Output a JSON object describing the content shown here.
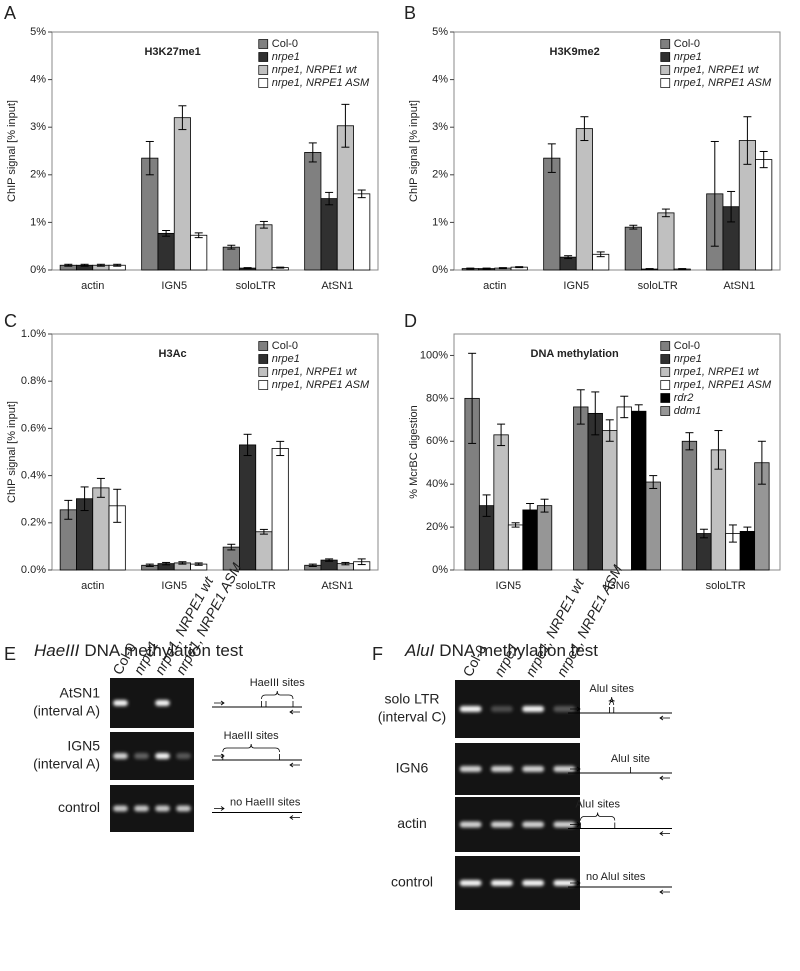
{
  "chart_data": [
    {
      "panel": "A",
      "type": "bar",
      "title": "H3K27me1",
      "ylabel": "ChIP signal [% input]",
      "categories": [
        "actin",
        "IGN5",
        "soloLTR",
        "AtSN1"
      ],
      "ylim": [
        0,
        5
      ],
      "yticks": [
        {
          "value": 0,
          "label": "0%"
        },
        {
          "value": 1,
          "label": "1%"
        },
        {
          "value": 2,
          "label": "2%"
        },
        {
          "value": 3,
          "label": "3%"
        },
        {
          "value": 4,
          "label": "4%"
        },
        {
          "value": 5,
          "label": "5%"
        }
      ],
      "legend": "upper right",
      "series": [
        {
          "name": "Col-0",
          "color": "#808080",
          "italic": false,
          "values": [
            0.1,
            2.35,
            0.48,
            2.47
          ],
          "errors": [
            0.02,
            0.35,
            0.04,
            0.2
          ]
        },
        {
          "name": "nrpe1",
          "color": "#303030",
          "italic": true,
          "values": [
            0.1,
            0.77,
            0.04,
            1.5
          ],
          "errors": [
            0.02,
            0.06,
            0.01,
            0.13
          ]
        },
        {
          "name": "nrpe1, NRPE1 wt",
          "color": "#c0c0c0",
          "italic": true,
          "values": [
            0.1,
            3.2,
            0.95,
            3.03
          ],
          "errors": [
            0.02,
            0.25,
            0.07,
            0.45
          ]
        },
        {
          "name": "nrpe1, NRPE1 ASM",
          "color": "#ffffff",
          "italic": true,
          "values": [
            0.1,
            0.73,
            0.05,
            1.6
          ],
          "errors": [
            0.02,
            0.05,
            0.01,
            0.08
          ]
        }
      ]
    },
    {
      "panel": "B",
      "type": "bar",
      "title": "H3K9me2",
      "ylabel": "ChIP signal [% input]",
      "categories": [
        "actin",
        "IGN5",
        "soloLTR",
        "AtSN1"
      ],
      "ylim": [
        0,
        5
      ],
      "yticks": [
        {
          "value": 0,
          "label": "0%"
        },
        {
          "value": 1,
          "label": "1%"
        },
        {
          "value": 2,
          "label": "2%"
        },
        {
          "value": 3,
          "label": "3%"
        },
        {
          "value": 4,
          "label": "4%"
        },
        {
          "value": 5,
          "label": "5%"
        }
      ],
      "legend": "upper right",
      "series": [
        {
          "name": "Col-0",
          "color": "#808080",
          "italic": false,
          "values": [
            0.03,
            2.35,
            0.9,
            1.6
          ],
          "errors": [
            0.01,
            0.3,
            0.04,
            1.1
          ]
        },
        {
          "name": "nrpe1",
          "color": "#303030",
          "italic": true,
          "values": [
            0.03,
            0.27,
            0.02,
            1.33
          ],
          "errors": [
            0.01,
            0.03,
            0.01,
            0.32
          ]
        },
        {
          "name": "nrpe1, NRPE1 wt",
          "color": "#c0c0c0",
          "italic": true,
          "values": [
            0.04,
            2.97,
            1.2,
            2.72
          ],
          "errors": [
            0.01,
            0.25,
            0.08,
            0.5
          ]
        },
        {
          "name": "nrpe1, NRPE1 ASM",
          "color": "#ffffff",
          "italic": true,
          "values": [
            0.06,
            0.33,
            0.02,
            2.32
          ],
          "errors": [
            0.01,
            0.05,
            0.01,
            0.17
          ]
        }
      ]
    },
    {
      "panel": "C",
      "type": "bar",
      "title": "H3Ac",
      "ylabel": "ChIP signal [% input]",
      "categories": [
        "actin",
        "IGN5",
        "soloLTR",
        "AtSN1"
      ],
      "ylim": [
        0,
        1
      ],
      "yticks": [
        {
          "value": 0,
          "label": "0.0%"
        },
        {
          "value": 0.2,
          "label": "0.2%"
        },
        {
          "value": 0.4,
          "label": "0.4%"
        },
        {
          "value": 0.6,
          "label": "0.6%"
        },
        {
          "value": 0.8,
          "label": "0.8%"
        },
        {
          "value": 1,
          "label": "1.0%"
        }
      ],
      "legend": "upper right",
      "series": [
        {
          "name": "Col-0",
          "color": "#808080",
          "italic": false,
          "values": [
            0.255,
            0.02,
            0.097,
            0.02
          ],
          "errors": [
            0.04,
            0.005,
            0.012,
            0.005
          ]
        },
        {
          "name": "nrpe1",
          "color": "#303030",
          "italic": true,
          "values": [
            0.302,
            0.027,
            0.53,
            0.042
          ],
          "errors": [
            0.05,
            0.005,
            0.045,
            0.005
          ]
        },
        {
          "name": "nrpe1, NRPE1 wt",
          "color": "#c0c0c0",
          "italic": true,
          "values": [
            0.348,
            0.03,
            0.162,
            0.027
          ],
          "errors": [
            0.04,
            0.005,
            0.01,
            0.005
          ]
        },
        {
          "name": "nrpe1, NRPE1 ASM",
          "color": "#ffffff",
          "italic": true,
          "values": [
            0.272,
            0.025,
            0.515,
            0.035
          ],
          "errors": [
            0.07,
            0.005,
            0.03,
            0.012
          ]
        }
      ]
    },
    {
      "panel": "D",
      "type": "bar",
      "title": "DNA methylation",
      "ylabel": "% McrBC digestion",
      "categories": [
        "IGN5",
        "IGN6",
        "soloLTR"
      ],
      "ylim": [
        0,
        110
      ],
      "yticks": [
        {
          "value": 0,
          "label": "0%"
        },
        {
          "value": 20,
          "label": "20%"
        },
        {
          "value": 40,
          "label": "40%"
        },
        {
          "value": 60,
          "label": "60%"
        },
        {
          "value": 80,
          "label": "80%"
        },
        {
          "value": 100,
          "label": "100%"
        }
      ],
      "legend": "upper right",
      "series": [
        {
          "name": "Col-0",
          "color": "#808080",
          "italic": false,
          "values": [
            80,
            76,
            60
          ],
          "errors": [
            21,
            8,
            4
          ]
        },
        {
          "name": "nrpe1",
          "color": "#303030",
          "italic": true,
          "values": [
            30,
            73,
            17
          ],
          "errors": [
            5,
            10,
            2
          ]
        },
        {
          "name": "nrpe1, NRPE1 wt",
          "color": "#c0c0c0",
          "italic": true,
          "values": [
            63,
            65,
            56
          ],
          "errors": [
            5,
            5,
            9
          ]
        },
        {
          "name": "nrpe1, NRPE1 ASM",
          "color": "#ffffff",
          "italic": true,
          "values": [
            21,
            76,
            17
          ],
          "errors": [
            1,
            5,
            4
          ]
        },
        {
          "name": "rdr2",
          "color": "#000000",
          "italic": true,
          "values": [
            28,
            74,
            18
          ],
          "errors": [
            3,
            3,
            2
          ]
        },
        {
          "name": "ddm1",
          "color": "#969696",
          "italic": true,
          "values": [
            30,
            41,
            50
          ],
          "errors": [
            3,
            3,
            10
          ]
        }
      ]
    }
  ],
  "gels": [
    {
      "panel": "E",
      "title_enzyme": "HaeIII",
      "title_text": "DNA methylation test",
      "lanes": [
        "Col-0",
        "nrpe1",
        "nrpe1, NRPE1 wt",
        "nrpe1, NRPE1 ASM"
      ],
      "rows": [
        {
          "label": [
            "AtSN1",
            "(interval A)"
          ],
          "site_label": "HaeIII sites"
        },
        {
          "label": [
            "IGN5",
            "(interval A)"
          ],
          "site_label": "HaeIII sites"
        },
        {
          "label": [
            "control"
          ],
          "site_label": "no HaeIII sites"
        }
      ]
    },
    {
      "panel": "F",
      "title_enzyme": "AluI",
      "title_text": "DNA methylation test",
      "lanes": [
        "Col-0",
        "nrpe1",
        "nrpe1, NRPE1 wt",
        "nrpe1, NRPE1 ASM"
      ],
      "rows": [
        {
          "label": [
            "solo LTR",
            "(interval C)"
          ],
          "site_label": "AluI sites"
        },
        {
          "label": [
            "IGN6"
          ],
          "site_label": "AluI site"
        },
        {
          "label": [
            "actin"
          ],
          "site_label": "AluI sites"
        },
        {
          "label": [
            "control"
          ],
          "site_label": "no AluI sites"
        }
      ]
    }
  ]
}
